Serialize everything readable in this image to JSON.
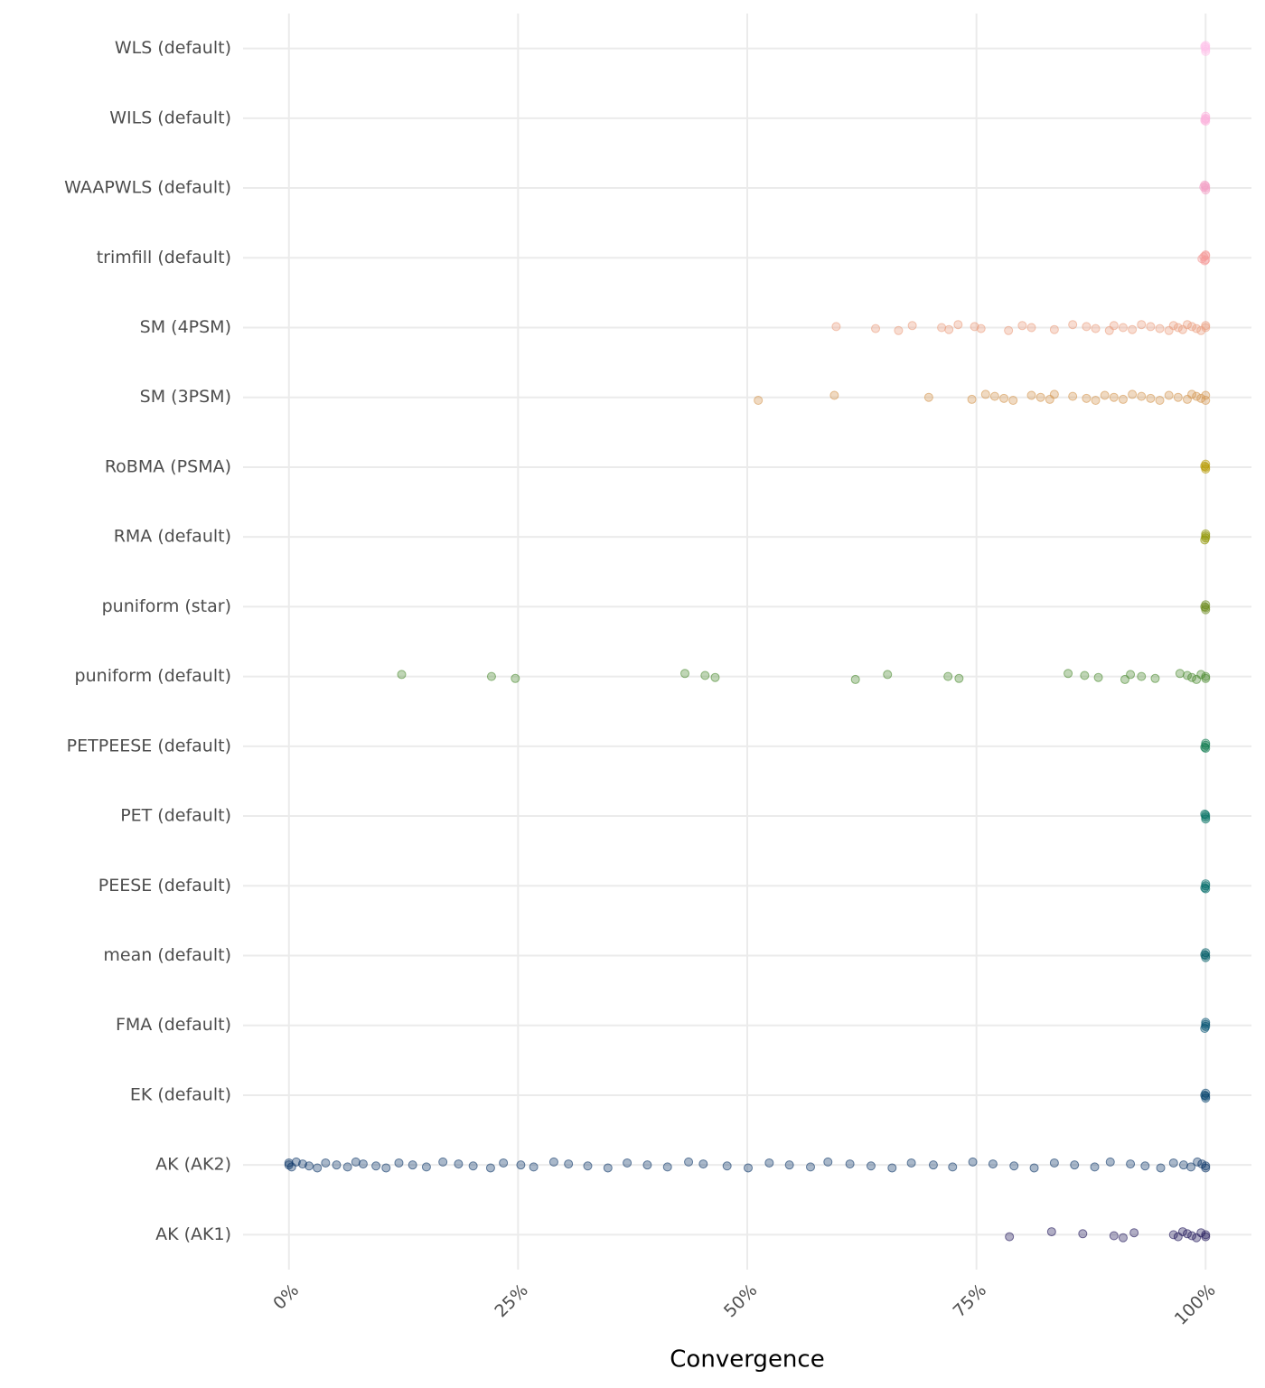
{
  "chart_data": {
    "type": "strip",
    "x_label": "Convergence",
    "xlim": [
      -5,
      105
    ],
    "xticks": [
      {
        "value": 0,
        "label": "0%"
      },
      {
        "value": 25,
        "label": "25%"
      },
      {
        "value": 50,
        "label": "50%"
      },
      {
        "value": 75,
        "label": "75%"
      },
      {
        "value": 100,
        "label": "100%"
      }
    ],
    "grid": true,
    "series": [
      {
        "name": "WLS (default)",
        "color": "#ffc2ea",
        "values": [
          100,
          100,
          100,
          100,
          99.9
        ]
      },
      {
        "name": "WILS (default)",
        "color": "#fbb3dc",
        "values": [
          100,
          100,
          100,
          100,
          99.9
        ]
      },
      {
        "name": "WAAPWLS (default)",
        "color": "#f3a0c6",
        "values": [
          100,
          100,
          100,
          99.9,
          99.8
        ]
      },
      {
        "name": "trimfill (default)",
        "color": "#f59c9a",
        "values": [
          100,
          100,
          99.8,
          99.6,
          99.9,
          100
        ]
      },
      {
        "name": "SM (4PSM)",
        "color": "#eb9f7f",
        "values": [
          59.7,
          64,
          66.5,
          68,
          71.2,
          72,
          73,
          74.8,
          75.5,
          78.5,
          80,
          81,
          83.5,
          85.5,
          87,
          88,
          89.5,
          90,
          91,
          92,
          93,
          94,
          95,
          96,
          96.5,
          97,
          97.5,
          98,
          98.5,
          99,
          99.5,
          100,
          100
        ]
      },
      {
        "name": "SM (3PSM)",
        "color": "#d4964f",
        "values": [
          51.2,
          59.5,
          69.8,
          74.5,
          76,
          77,
          78,
          79,
          81,
          82,
          83,
          83.5,
          85.5,
          87,
          88,
          89,
          90,
          91,
          92,
          93,
          94,
          95,
          96,
          97,
          98,
          98.5,
          99,
          99.5,
          100,
          100
        ]
      },
      {
        "name": "RoBMA (PSMA)",
        "color": "#b89a00",
        "values": [
          100,
          100,
          100,
          99.9
        ]
      },
      {
        "name": "RMA (default)",
        "color": "#8f9400",
        "values": [
          100,
          100,
          100,
          99.9
        ]
      },
      {
        "name": "puniform (star)",
        "color": "#6a8a1a",
        "values": [
          100,
          100,
          100,
          99.9
        ]
      },
      {
        "name": "puniform (default)",
        "color": "#4a8a2e",
        "values": [
          12.3,
          22.1,
          24.7,
          43.2,
          45.4,
          46.5,
          61.8,
          65.3,
          71.9,
          73.1,
          85,
          86.8,
          88.3,
          91.2,
          91.8,
          93,
          94.5,
          97.2,
          98,
          98.5,
          99,
          99.5,
          100,
          100
        ]
      },
      {
        "name": "PETPEESE (default)",
        "color": "#0d7a4e",
        "values": [
          100,
          100,
          100,
          99.9
        ]
      },
      {
        "name": "PET (default)",
        "color": "#007060",
        "values": [
          100,
          100,
          100,
          99.9
        ]
      },
      {
        "name": "PEESE (default)",
        "color": "#006a68",
        "values": [
          100,
          100,
          100,
          99.9
        ]
      },
      {
        "name": "mean (default)",
        "color": "#005d66",
        "values": [
          100,
          100,
          100,
          99.9
        ]
      },
      {
        "name": "FMA (default)",
        "color": "#005070",
        "values": [
          100,
          100,
          100,
          99.9
        ]
      },
      {
        "name": "EK (default)",
        "color": "#00406a",
        "values": [
          100,
          100,
          100,
          99.9
        ]
      },
      {
        "name": "AK (AK2)",
        "color": "#0a3366",
        "values": [
          0,
          0,
          0.3,
          0.8,
          1.5,
          2.2,
          3.1,
          4,
          5.2,
          6.4,
          7.3,
          8.1,
          9.5,
          10.6,
          12,
          13.5,
          15,
          16.8,
          18.5,
          20.1,
          22,
          23.4,
          25.3,
          26.7,
          28.9,
          30.5,
          32.6,
          34.8,
          36.9,
          39.1,
          41.3,
          43.6,
          45.2,
          47.8,
          50.1,
          52.4,
          54.6,
          56.9,
          58.8,
          61.2,
          63.5,
          65.8,
          67.9,
          70.3,
          72.4,
          74.6,
          76.8,
          79.1,
          81.3,
          83.5,
          85.7,
          87.9,
          89.6,
          91.8,
          93.4,
          95.1,
          96.5,
          97.6,
          98.4,
          99.1,
          99.6,
          100,
          100
        ]
      },
      {
        "name": "AK (AK1)",
        "color": "#20165a",
        "values": [
          78.6,
          83.2,
          86.6,
          90,
          91,
          92.2,
          96.5,
          97,
          97.5,
          98,
          98.5,
          99,
          99.5,
          100,
          100
        ]
      }
    ]
  }
}
